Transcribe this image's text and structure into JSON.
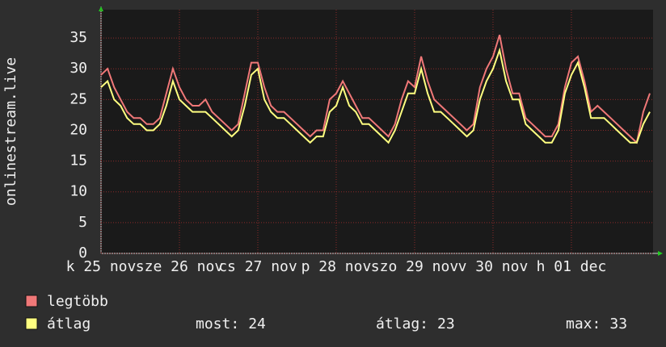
{
  "chart_data": {
    "type": "line",
    "y_label": "onlinestream.live",
    "x": [
      0,
      2,
      4,
      6,
      8,
      10,
      12,
      14,
      16,
      18,
      20,
      22,
      24,
      26,
      28,
      30,
      32,
      34,
      36,
      38,
      40,
      42,
      44,
      46,
      48,
      50,
      52,
      54,
      56,
      58,
      60,
      62,
      64,
      66,
      68,
      70,
      72,
      74,
      76,
      78,
      80,
      82,
      84,
      86,
      88,
      90,
      92,
      94,
      96,
      98,
      100,
      102,
      104,
      106,
      108,
      110,
      112,
      114,
      116,
      118,
      120,
      122,
      124,
      126,
      128,
      130,
      132,
      134,
      136,
      138,
      140,
      142,
      144,
      146,
      148,
      150,
      152,
      154,
      156,
      158,
      160,
      162,
      164,
      166,
      168
    ],
    "series": [
      {
        "name": "legtöbb",
        "color": "#f07878",
        "values": [
          29,
          30,
          27,
          25,
          23,
          22,
          22,
          21,
          21,
          22,
          26,
          30,
          27,
          25,
          24,
          24,
          25,
          23,
          22,
          21,
          20,
          21,
          26,
          31,
          31,
          27,
          24,
          23,
          23,
          22,
          21,
          20,
          19,
          20,
          20,
          25,
          26,
          28,
          26,
          24,
          22,
          22,
          21,
          20,
          19,
          21,
          25,
          28,
          27,
          32,
          28,
          25,
          24,
          23,
          22,
          21,
          20,
          21,
          27,
          30,
          32,
          35.5,
          30,
          26,
          26,
          22,
          21,
          20,
          19,
          19,
          21,
          27,
          31,
          32,
          28,
          23,
          24,
          23,
          22,
          21,
          20,
          19,
          18,
          23,
          26
        ]
      },
      {
        "name": "átlag",
        "color": "#ffff80",
        "values": [
          27,
          28,
          25,
          24,
          22,
          21,
          21,
          20,
          20,
          21,
          24,
          28,
          25,
          24,
          23,
          23,
          23,
          22,
          21,
          20,
          19,
          20,
          24,
          29,
          30,
          25,
          23,
          22,
          22,
          21,
          20,
          19,
          18,
          19,
          19,
          23,
          24,
          27,
          24,
          23,
          21,
          21,
          20,
          19,
          18,
          20,
          23,
          26,
          26,
          30,
          26,
          23,
          23,
          22,
          21,
          20,
          19,
          20,
          25,
          28,
          30,
          33,
          28,
          25,
          25,
          21,
          20,
          19,
          18,
          18,
          20,
          26,
          29,
          31,
          27,
          22,
          22,
          22,
          21,
          20,
          19,
          18,
          18,
          21,
          23
        ]
      }
    ],
    "xlim": [
      0,
      169
    ],
    "xticks": [
      {
        "value": 0,
        "label": "k 25 nov"
      },
      {
        "value": 24,
        "label": "sze 26 nov"
      },
      {
        "value": 48,
        "label": "cs 27 nov"
      },
      {
        "value": 72,
        "label": "p 28 nov"
      },
      {
        "value": 96,
        "label": "szo 29 nov"
      },
      {
        "value": 120,
        "label": "v 30 nov"
      },
      {
        "value": 144,
        "label": "h 01 dec"
      }
    ],
    "ylim": [
      0,
      39.6
    ],
    "yticks": [
      0,
      5,
      10,
      15,
      20,
      25,
      30,
      35
    ],
    "grid": true,
    "stats": [
      {
        "label": "most:",
        "value": 24
      },
      {
        "label": "átlag:",
        "value": 23
      },
      {
        "label": "max:",
        "value": 33
      }
    ]
  }
}
